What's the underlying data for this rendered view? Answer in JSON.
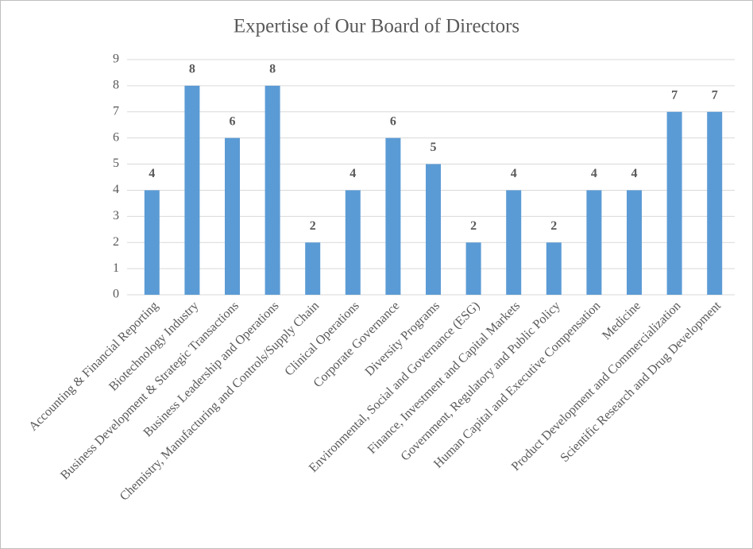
{
  "chart_data": {
    "type": "bar",
    "title": "Expertise of Our Board of Directors",
    "categories": [
      "Accounting & Financial Reporting",
      "Biotechnology Industry",
      "Business Development & Strategic Transactions",
      "Business Leadership and Operations",
      "Chemistry, Manufacturing and Controls/Supply Chain",
      "Clinical Operations",
      "Corporate Governance",
      "Diversity Programs",
      "Environmental, Social and Governance (ESG)",
      "Finance, Investment and Capital Markets",
      "Government, Regulatory and Public Policy",
      "Human Capital and Executive Compensation",
      "Medicine",
      "Product Development and Commercialization",
      "Scientific Research and Drug Development"
    ],
    "values": [
      4,
      8,
      6,
      8,
      2,
      4,
      6,
      5,
      2,
      4,
      2,
      4,
      4,
      7,
      7
    ],
    "color": "#5b9bd5",
    "ylim": [
      0,
      9
    ],
    "yticks": [
      0,
      1,
      2,
      3,
      4,
      5,
      6,
      7,
      8,
      9
    ],
    "grid": true,
    "data_labels": true
  }
}
